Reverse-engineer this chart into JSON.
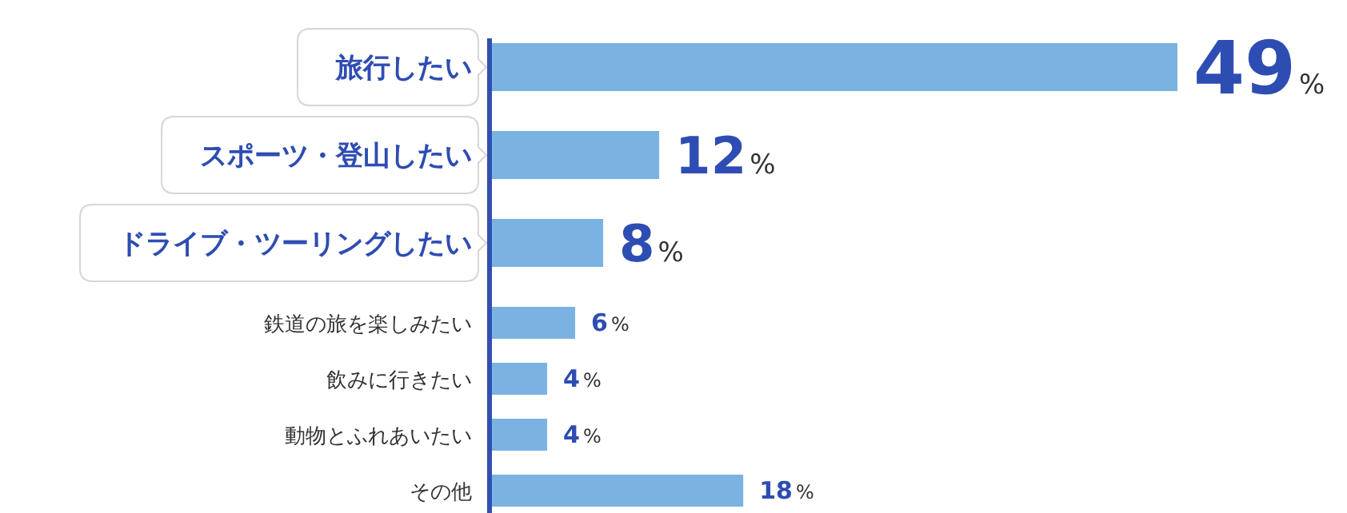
{
  "chart_data": {
    "type": "bar",
    "orientation": "horizontal",
    "categories": [
      "旅行したい",
      "スポーツ・登山したい",
      "ドライブ・ツーリングしたい",
      "鉄道の旅を楽しみたい",
      "飲みに行きたい",
      "動物とふれあいたい",
      "その他"
    ],
    "values": [
      49,
      12,
      8,
      6,
      4,
      4,
      18
    ],
    "value_labels": [
      "49%",
      "12%",
      "8%",
      "6%",
      "4%",
      "4%",
      "18%"
    ],
    "color": "#7ab2e2"
  }
}
